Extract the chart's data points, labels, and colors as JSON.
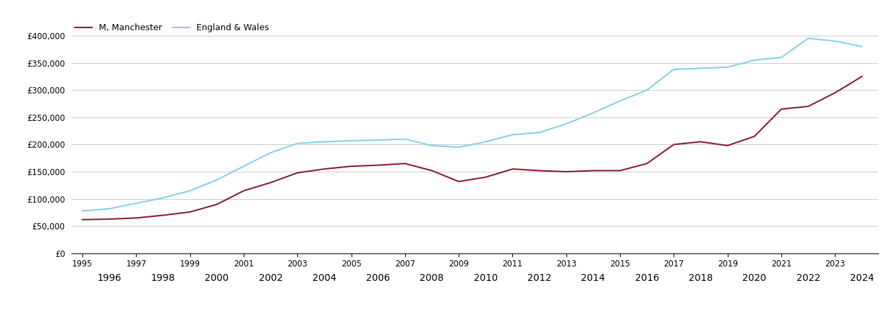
{
  "manchester_label": "M, Manchester",
  "england_label": "England & Wales",
  "manchester_color": "#8B1A2E",
  "england_color": "#87CEEB",
  "background_color": "#ffffff",
  "grid_color": "#cccccc",
  "years": [
    1995,
    1996,
    1997,
    1998,
    1999,
    2000,
    2001,
    2002,
    2003,
    2004,
    2005,
    2006,
    2007,
    2008,
    2009,
    2010,
    2011,
    2012,
    2013,
    2014,
    2015,
    2016,
    2017,
    2018,
    2019,
    2020,
    2021,
    2022,
    2023,
    2024
  ],
  "manchester_values": [
    62000,
    63000,
    65000,
    70000,
    76000,
    90000,
    115000,
    130000,
    148000,
    155000,
    160000,
    162000,
    165000,
    152000,
    132000,
    140000,
    155000,
    152000,
    150000,
    152000,
    152000,
    165000,
    200000,
    205000,
    198000,
    215000,
    265000,
    270000,
    295000,
    325000
  ],
  "england_values": [
    78000,
    82000,
    92000,
    102000,
    115000,
    135000,
    160000,
    185000,
    202000,
    205000,
    207000,
    208000,
    210000,
    198000,
    195000,
    205000,
    218000,
    222000,
    238000,
    258000,
    280000,
    300000,
    338000,
    340000,
    342000,
    355000,
    360000,
    395000,
    390000,
    380000
  ],
  "ylim": [
    0,
    420000
  ],
  "yticks": [
    0,
    50000,
    100000,
    150000,
    200000,
    250000,
    300000,
    350000,
    400000
  ],
  "odd_xticks": [
    1995,
    1997,
    1999,
    2001,
    2003,
    2005,
    2007,
    2009,
    2011,
    2013,
    2015,
    2017,
    2019,
    2021,
    2023
  ],
  "even_xticks": [
    1996,
    1998,
    2000,
    2002,
    2004,
    2006,
    2008,
    2010,
    2012,
    2014,
    2016,
    2018,
    2020,
    2022,
    2024
  ],
  "line_width": 1.5,
  "figsize": [
    13.05,
    4.5
  ],
  "dpi": 100
}
